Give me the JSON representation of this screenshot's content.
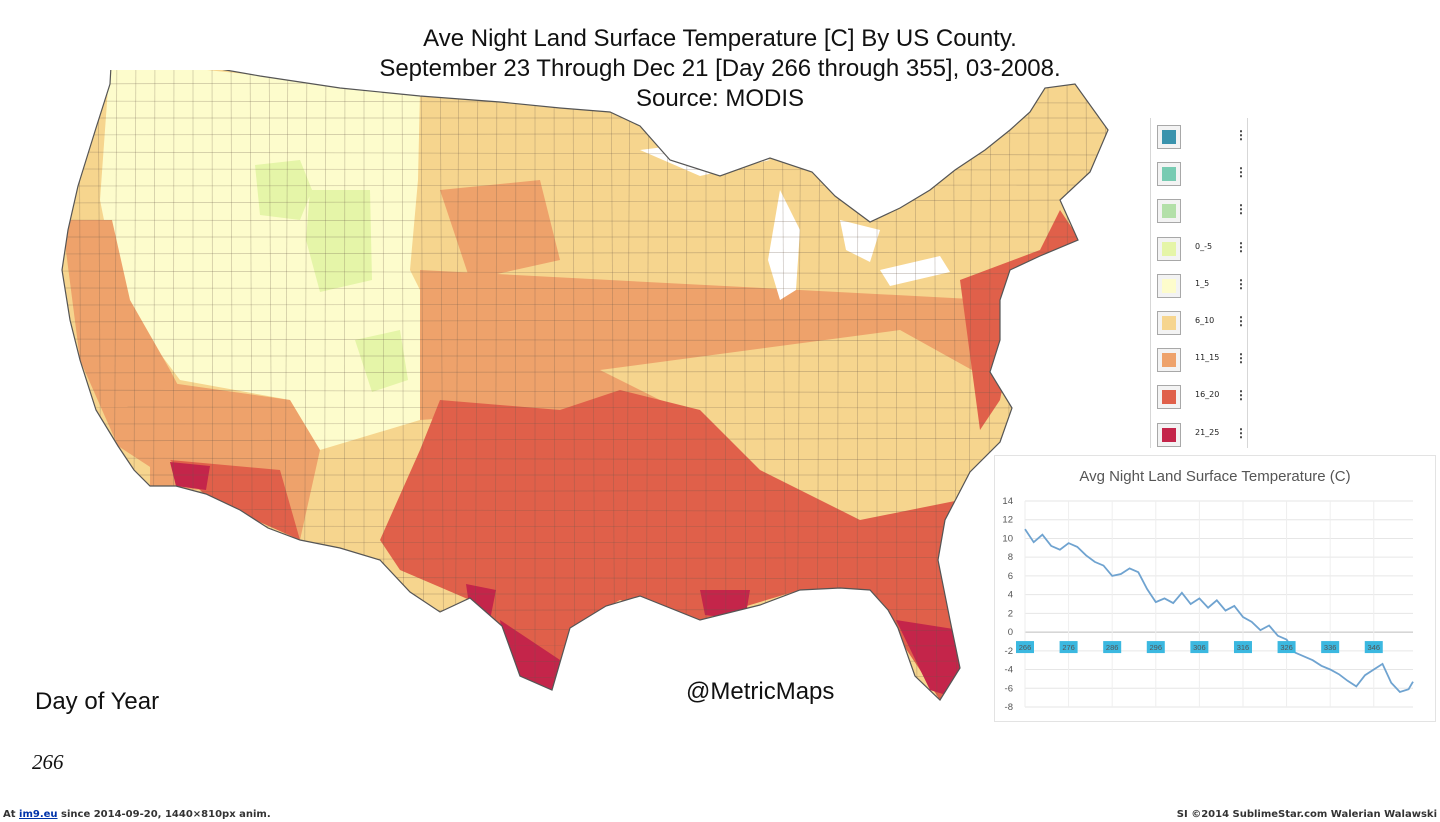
{
  "title": {
    "line1": "Ave Night Land Surface Temperature [C] By US County.",
    "line2": "September 23 Through Dec 21 [Day 266 through 355], 03-2008.",
    "line3": "Source:  MODIS"
  },
  "legend": {
    "items": [
      {
        "label": "",
        "color": "#3a93ad"
      },
      {
        "label": "",
        "color": "#78cbb2"
      },
      {
        "label": "",
        "color": "#b3e0a9"
      },
      {
        "label": "0_-5",
        "color": "#e5f5a8"
      },
      {
        "label": "1_5",
        "color": "#fdfccc"
      },
      {
        "label": "6_10",
        "color": "#f6d58e"
      },
      {
        "label": "11_15",
        "color": "#eea26b"
      },
      {
        "label": "16_20",
        "color": "#e0604a"
      },
      {
        "label": "21_25",
        "color": "#c4254a"
      }
    ],
    "menu_glyph": "⋮"
  },
  "chart_data": {
    "type": "line",
    "title": "Avg Night Land Surface Temperature (C)",
    "xlabel": "",
    "ylabel": "",
    "ylim": [
      -8,
      14
    ],
    "yticks": [
      14,
      12,
      10,
      8,
      6,
      4,
      2,
      0,
      -2,
      -4,
      -6,
      -8
    ],
    "xlim": [
      266,
      355
    ],
    "xticks": [
      266,
      276,
      286,
      296,
      306,
      316,
      326,
      336,
      346
    ],
    "line_color": "#6fa3d0",
    "tick_bg_color": "#3bb8e0",
    "x": [
      266,
      268,
      270,
      272,
      274,
      276,
      278,
      280,
      282,
      284,
      286,
      288,
      290,
      292,
      294,
      296,
      298,
      300,
      302,
      304,
      306,
      308,
      310,
      312,
      314,
      316,
      318,
      320,
      322,
      324,
      326,
      328,
      330,
      332,
      334,
      336,
      338,
      340,
      342,
      344,
      346,
      348,
      350,
      352,
      354,
      355
    ],
    "y": [
      11.0,
      9.6,
      10.4,
      9.2,
      8.8,
      9.5,
      9.1,
      8.2,
      7.5,
      7.1,
      6.0,
      6.2,
      6.8,
      6.4,
      4.6,
      3.2,
      3.6,
      3.1,
      4.2,
      3.0,
      3.6,
      2.6,
      3.4,
      2.3,
      2.8,
      1.6,
      1.1,
      0.2,
      0.7,
      -0.4,
      -0.8,
      -2.2,
      -2.6,
      -3.0,
      -3.6,
      -4.0,
      -4.5,
      -5.2,
      -5.8,
      -4.6,
      -4.0,
      -3.4,
      -5.4,
      -6.4,
      -6.1,
      -5.3
    ]
  },
  "watermark": "@MetricMaps",
  "day_label": "Day of Year",
  "day_value": "266",
  "footer": {
    "left_prefix": "At ",
    "left_link": "im9.eu",
    "left_suffix": " since 2014-09-20, 1440×810px anim.",
    "right": "SI ©2014 SublimeStar.com Walerian Walawski"
  }
}
